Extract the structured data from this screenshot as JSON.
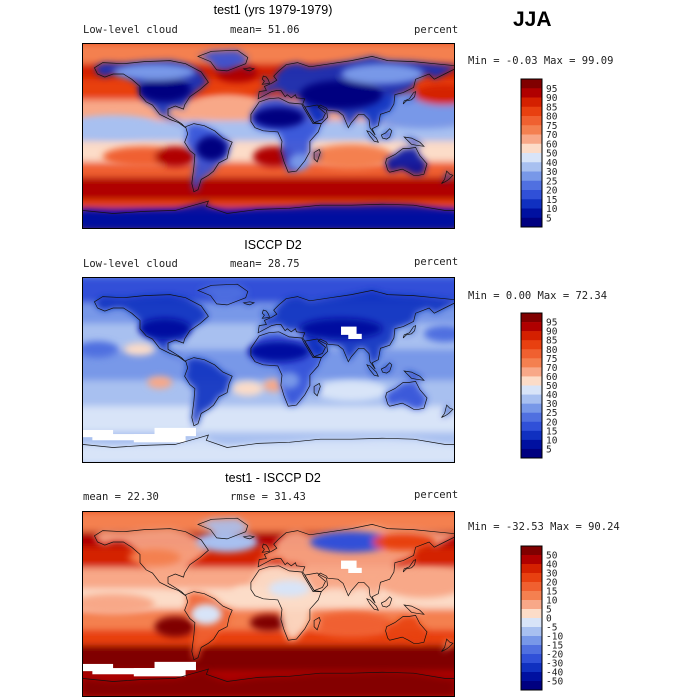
{
  "season": "JJA",
  "panels": [
    {
      "title": "test1 (yrs 1979-1979)",
      "left_label": "Low-level cloud",
      "center_label": "mean=  51.06",
      "right_label": "percent",
      "minmax": "Min =  -0.03 Max =  99.09"
    },
    {
      "title": "ISCCP D2",
      "left_label": "Low-level cloud",
      "center_label": "mean=  28.75",
      "right_label": "percent",
      "minmax": "Min =   0.00 Max =  72.34"
    },
    {
      "title": "test1 - ISCCP D2",
      "left_label": "mean =  22.30",
      "center_label": "rmse =  31.43",
      "right_label": "percent",
      "minmax": "Min = -32.53 Max =  90.24"
    }
  ],
  "chart_data": [
    {
      "type": "heatmap",
      "title": "test1 (yrs 1979-1979)",
      "colorbar_levels": [
        "95",
        "90",
        "85",
        "80",
        "75",
        "70",
        "60",
        "50",
        "40",
        "30",
        "25",
        "20",
        "15",
        "10",
        "5"
      ],
      "colors": [
        "#800000",
        "#b00000",
        "#d42000",
        "#e84010",
        "#f06030",
        "#f48050",
        "#f8a888",
        "#fcdcc8",
        "#d8e4f8",
        "#a8c0f0",
        "#7898e8",
        "#5070e0",
        "#3050d8",
        "#1030c0",
        "#0010a0",
        "#000080"
      ]
    },
    {
      "type": "heatmap",
      "title": "ISCCP D2",
      "colorbar_levels": [
        "95",
        "90",
        "85",
        "80",
        "75",
        "70",
        "60",
        "50",
        "40",
        "30",
        "25",
        "20",
        "15",
        "10",
        "5"
      ],
      "colors": [
        "#800000",
        "#b00000",
        "#d42000",
        "#e84010",
        "#f06030",
        "#f48050",
        "#f8a888",
        "#fcdcc8",
        "#d8e4f8",
        "#a8c0f0",
        "#7898e8",
        "#5070e0",
        "#3050d8",
        "#1030c0",
        "#0010a0",
        "#000080"
      ]
    },
    {
      "type": "heatmap",
      "title": "test1 - ISCCP D2",
      "colorbar_levels": [
        "50",
        "40",
        "30",
        "20",
        "15",
        "10",
        "5",
        "0",
        "-5",
        "-10",
        "-15",
        "-20",
        "-30",
        "-40",
        "-50"
      ],
      "colors": [
        "#800000",
        "#b00000",
        "#d42000",
        "#e84010",
        "#f06030",
        "#f48050",
        "#f8a888",
        "#fcdcc8",
        "#d8e4f8",
        "#a8c0f0",
        "#7898e8",
        "#5070e0",
        "#3050d8",
        "#1030c0",
        "#0010a0",
        "#000080"
      ]
    }
  ]
}
